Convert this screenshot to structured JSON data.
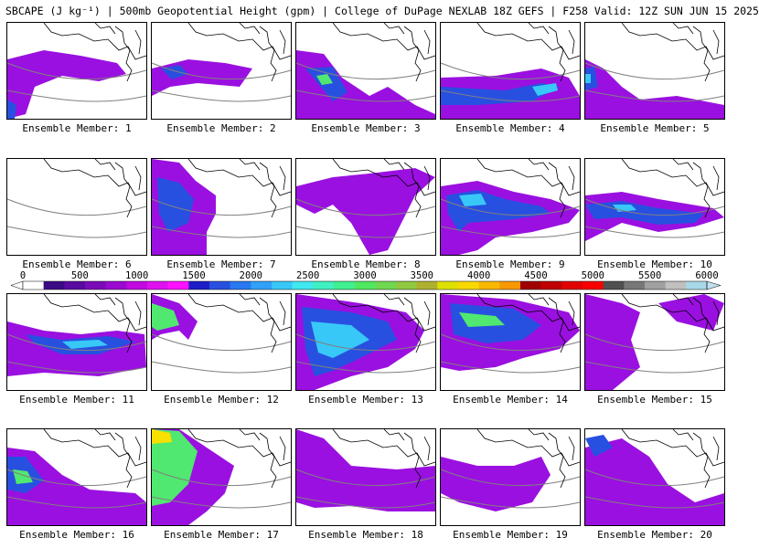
{
  "header": {
    "title": "SBCAPE (J kg⁻¹) | 500mb Geopotential Height (gpm) | College of DuPage NEXLAB 18Z GEFS | F258 Valid: 12Z SUN JUN 15 2025"
  },
  "colorbar": {
    "ticks": [
      "0",
      "500",
      "1000",
      "1500",
      "2000",
      "2500",
      "3000",
      "3500",
      "4000",
      "4500",
      "5000",
      "5500",
      "6000"
    ],
    "colors": [
      "#ffffff",
      "#3b0a85",
      "#5a0aa0",
      "#7a0ab8",
      "#9a0ad0",
      "#c00ae0",
      "#e010f0",
      "#ff10ff",
      "#1e1ec8",
      "#2850e0",
      "#2878f0",
      "#30a0f8",
      "#38c8f8",
      "#40e8f0",
      "#40f0c0",
      "#40f090",
      "#50e860",
      "#70d850",
      "#90c840",
      "#b0b030",
      "#e0e000",
      "#f8d800",
      "#f8b800",
      "#f89800",
      "#a00000",
      "#c00000",
      "#e00000",
      "#f80000",
      "#505050",
      "#787878",
      "#a0a0a0",
      "#c0c0c0",
      "#a8d8e8"
    ],
    "low_color": "#ffffff",
    "high_color": "#c0e0f0"
  },
  "members": [
    {
      "label": "Ensemble Member: 1"
    },
    {
      "label": "Ensemble Member: 2"
    },
    {
      "label": "Ensemble Member: 3"
    },
    {
      "label": "Ensemble Member: 4"
    },
    {
      "label": "Ensemble Member: 5"
    },
    {
      "label": "Ensemble Member: 6"
    },
    {
      "label": "Ensemble Member: 7"
    },
    {
      "label": "Ensemble Member: 8"
    },
    {
      "label": "Ensemble Member: 9"
    },
    {
      "label": "Ensemble Member: 10"
    },
    {
      "label": "Ensemble Member: 11"
    },
    {
      "label": "Ensemble Member: 12"
    },
    {
      "label": "Ensemble Member: 13"
    },
    {
      "label": "Ensemble Member: 14"
    },
    {
      "label": "Ensemble Member: 15"
    },
    {
      "label": "Ensemble Member: 16"
    },
    {
      "label": "Ensemble Member: 17"
    },
    {
      "label": "Ensemble Member: 18"
    },
    {
      "label": "Ensemble Member: 19"
    },
    {
      "label": "Ensemble Member: 20"
    }
  ],
  "colors": {
    "purple": "#9a10e0",
    "magenta": "#e010f0",
    "dark_purple": "#6a10b0",
    "blue": "#2850e0",
    "cyan": "#38c8f8",
    "green": "#50e870",
    "yellow": "#f8e000",
    "coast": "#000000",
    "height_contour": "#808080"
  }
}
